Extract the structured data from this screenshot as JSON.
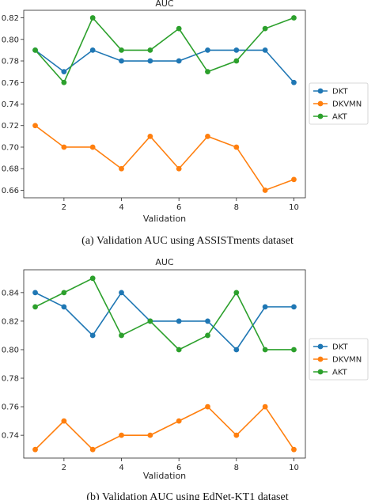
{
  "chart_data": [
    {
      "type": "line",
      "title": "AUC",
      "xlabel": "Validation",
      "ylabel": "",
      "x": [
        1,
        2,
        3,
        4,
        5,
        6,
        7,
        8,
        9,
        10
      ],
      "xticks": [
        "2",
        "4",
        "6",
        "8",
        "10"
      ],
      "xtick_values": [
        2,
        4,
        6,
        8,
        10
      ],
      "yticks": [
        "0.66",
        "0.68",
        "0.70",
        "0.72",
        "0.74",
        "0.76",
        "0.78",
        "0.80",
        "0.82"
      ],
      "ytick_values": [
        0.66,
        0.68,
        0.7,
        0.72,
        0.74,
        0.76,
        0.78,
        0.8,
        0.82
      ],
      "xlim": [
        0.6,
        10.4
      ],
      "ylim": [
        0.653,
        0.827
      ],
      "grid": false,
      "legend_position": "right",
      "series": [
        {
          "name": "DKT",
          "color": "#1f77b4",
          "values": [
            0.79,
            0.77,
            0.79,
            0.78,
            0.78,
            0.78,
            0.79,
            0.79,
            0.79,
            0.76
          ]
        },
        {
          "name": "DKVMN",
          "color": "#ff7f0e",
          "values": [
            0.72,
            0.7,
            0.7,
            0.68,
            0.71,
            0.68,
            0.71,
            0.7,
            0.66,
            0.67
          ]
        },
        {
          "name": "AKT",
          "color": "#2ca02c",
          "values": [
            0.79,
            0.76,
            0.82,
            0.79,
            0.79,
            0.81,
            0.77,
            0.78,
            0.81,
            0.82
          ]
        }
      ],
      "caption": "(a) Validation AUC using ASSISTments dataset"
    },
    {
      "type": "line",
      "title": "AUC",
      "xlabel": "Validation",
      "ylabel": "",
      "x": [
        1,
        2,
        3,
        4,
        5,
        6,
        7,
        8,
        9,
        10
      ],
      "xticks": [
        "2",
        "4",
        "6",
        "8",
        "10"
      ],
      "xtick_values": [
        2,
        4,
        6,
        8,
        10
      ],
      "yticks": [
        "0.74",
        "0.76",
        "0.78",
        "0.80",
        "0.82",
        "0.84"
      ],
      "ytick_values": [
        0.74,
        0.76,
        0.78,
        0.8,
        0.82,
        0.84
      ],
      "xlim": [
        0.6,
        10.4
      ],
      "ylim": [
        0.724,
        0.856
      ],
      "grid": false,
      "legend_position": "right",
      "series": [
        {
          "name": "DKT",
          "color": "#1f77b4",
          "values": [
            0.84,
            0.83,
            0.81,
            0.84,
            0.82,
            0.82,
            0.82,
            0.8,
            0.83,
            0.83
          ]
        },
        {
          "name": "DKVMN",
          "color": "#ff7f0e",
          "values": [
            0.73,
            0.75,
            0.73,
            0.74,
            0.74,
            0.75,
            0.76,
            0.74,
            0.76,
            0.73
          ]
        },
        {
          "name": "AKT",
          "color": "#2ca02c",
          "values": [
            0.83,
            0.84,
            0.85,
            0.81,
            0.82,
            0.8,
            0.81,
            0.84,
            0.8,
            0.8
          ]
        }
      ],
      "caption": "(b) Validation AUC using EdNet-KT1 dataset"
    }
  ]
}
